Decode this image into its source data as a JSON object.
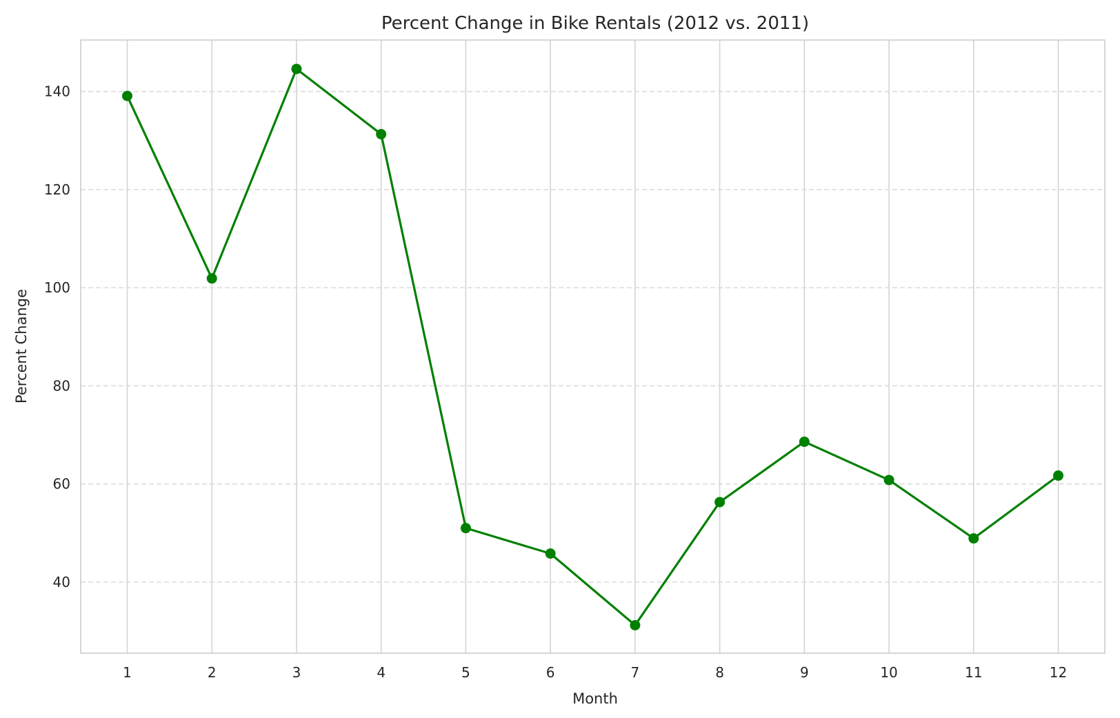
{
  "chart_data": {
    "type": "line",
    "title": "Percent Change in Bike Rentals (2012 vs. 2011)",
    "xlabel": "Month",
    "ylabel": "Percent Change",
    "x": [
      1,
      2,
      3,
      4,
      5,
      6,
      7,
      8,
      9,
      10,
      11,
      12
    ],
    "x_tick_labels": [
      "1",
      "2",
      "3",
      "4",
      "5",
      "6",
      "7",
      "8",
      "9",
      "10",
      "11",
      "12"
    ],
    "y_ticks": [
      40,
      60,
      80,
      100,
      120,
      140
    ],
    "y_tick_labels": [
      "40",
      "60",
      "80",
      "100",
      "120",
      "140"
    ],
    "xlim": [
      0.45,
      12.55
    ],
    "ylim": [
      25.5,
      150.5
    ],
    "series": [
      {
        "color": "#008000",
        "values": [
          139.1,
          101.9,
          144.6,
          131.3,
          51.0,
          45.8,
          31.2,
          56.3,
          68.6,
          60.8,
          48.9,
          61.7
        ]
      }
    ],
    "grid": {
      "x": "solid",
      "y": "dashed"
    },
    "marker": "circle"
  }
}
